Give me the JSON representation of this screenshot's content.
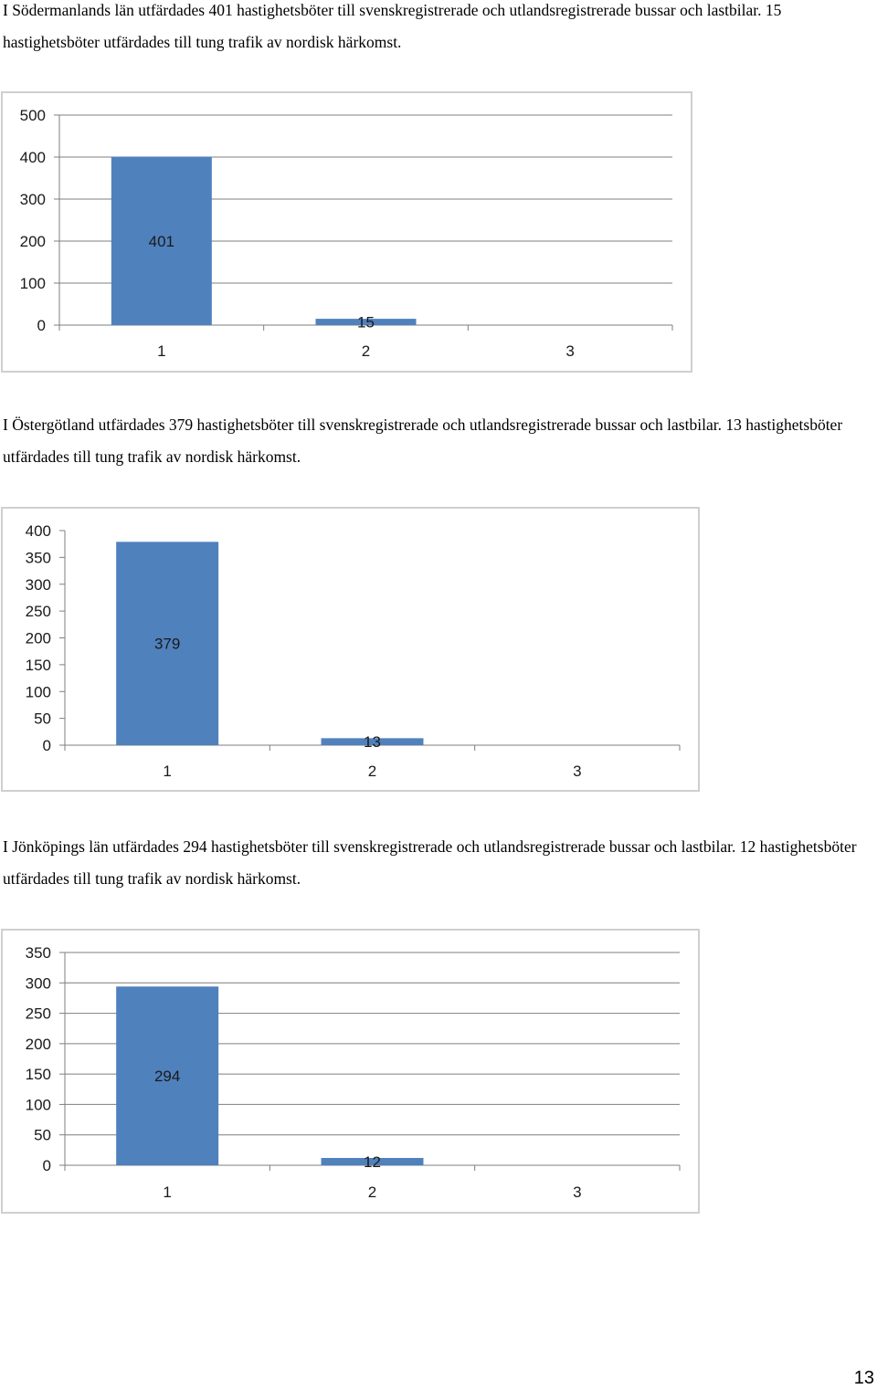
{
  "paragraphs": [
    "I Södermanlands län utfärdades 401 hastighetsböter till svenskregistrerade och utlandsregistrerade bussar och lastbilar. 15 hastighetsböter utfärdades till tung trafik av nordisk härkomst.",
    "I Östergötland utfärdades 379 hastighetsböter till svenskregistrerade och utlandsregistrerade bussar och lastbilar. 13 hastighetsböter utfärdades till tung trafik av nordisk härkomst.",
    "I Jönköpings län utfärdades 294 hastighetsböter till svenskregistrerade och utlandsregistrerade bussar och lastbilar. 12 hastighetsböter utfärdades till tung trafik av nordisk härkomst."
  ],
  "page_number": "13",
  "colors": {
    "bar": "#4f81bd",
    "grid": "#7f7f7f",
    "border": "#cfcfcf"
  },
  "chart_data": [
    {
      "type": "bar",
      "categories": [
        "1",
        "2",
        "3"
      ],
      "values": [
        401,
        15,
        null
      ],
      "data_labels": [
        "401",
        "15",
        ""
      ],
      "yticks": [
        0,
        100,
        200,
        300,
        400,
        500
      ],
      "ylim": [
        0,
        500
      ],
      "grid": true,
      "legend": "none",
      "title": "",
      "xlabel": "",
      "ylabel": ""
    },
    {
      "type": "bar",
      "categories": [
        "1",
        "2",
        "3"
      ],
      "values": [
        379,
        13,
        null
      ],
      "data_labels": [
        "379",
        "13",
        ""
      ],
      "yticks": [
        0,
        50,
        100,
        150,
        200,
        250,
        300,
        350,
        400
      ],
      "ylim": [
        0,
        400
      ],
      "grid": false,
      "legend": "none",
      "title": "",
      "xlabel": "",
      "ylabel": ""
    },
    {
      "type": "bar",
      "categories": [
        "1",
        "2",
        "3"
      ],
      "values": [
        294,
        12,
        null
      ],
      "data_labels": [
        "294",
        "12",
        ""
      ],
      "yticks": [
        0,
        50,
        100,
        150,
        200,
        250,
        300,
        350
      ],
      "ylim": [
        0,
        350
      ],
      "grid": true,
      "legend": "none",
      "title": "",
      "xlabel": "",
      "ylabel": ""
    }
  ]
}
